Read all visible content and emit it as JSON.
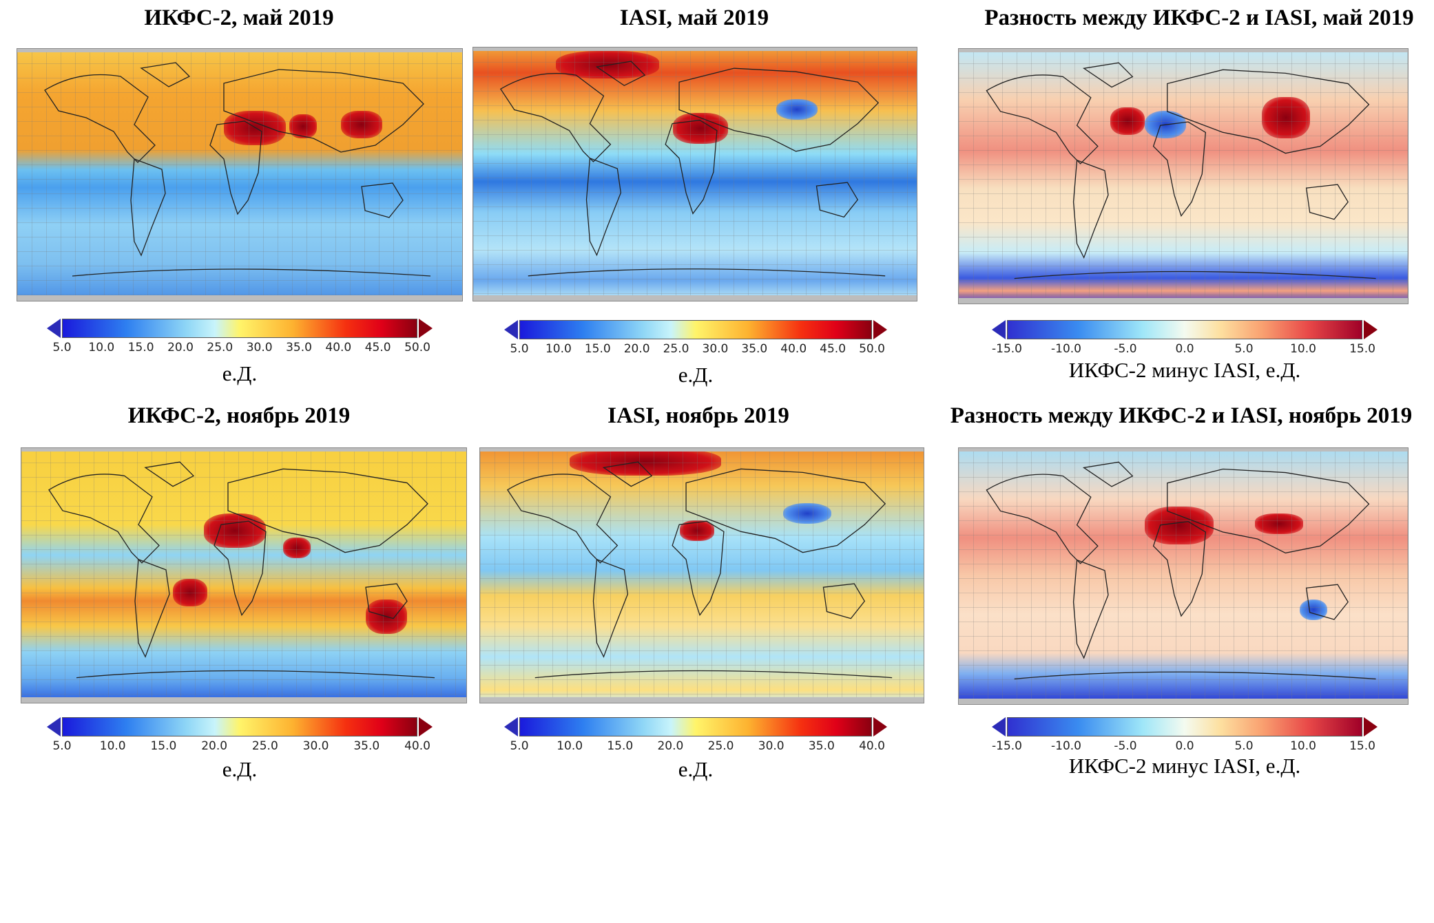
{
  "panels": [
    {
      "title": "ИКФС-2, май 2019",
      "unit": "е.Д.",
      "cbar": "abs",
      "ticks": [
        "5.0",
        "10.0",
        "15.0",
        "20.0",
        "25.0",
        "30.0",
        "35.0",
        "40.0",
        "45.0",
        "50.0"
      ]
    },
    {
      "title": "IASI, май 2019",
      "unit": "е.Д.",
      "cbar": "abs",
      "ticks": [
        "5.0",
        "10.0",
        "15.0",
        "20.0",
        "25.0",
        "30.0",
        "35.0",
        "40.0",
        "45.0",
        "50.0"
      ]
    },
    {
      "title": "Разность между ИКФС-2 и IASI, май 2019",
      "unit": "ИКФС-2 минус IASI, е.Д.",
      "cbar": "diff",
      "ticks": [
        "-15.0",
        "-10.0",
        "-5.0",
        "0.0",
        "5.0",
        "10.0",
        "15.0"
      ]
    },
    {
      "title": "ИКФС-2, ноябрь 2019",
      "unit": "е.Д.",
      "cbar": "abs",
      "ticks": [
        "5.0",
        "10.0",
        "15.0",
        "20.0",
        "25.0",
        "30.0",
        "35.0",
        "40.0"
      ]
    },
    {
      "title": "IASI, ноябрь 2019",
      "unit": "е.Д.",
      "cbar": "abs",
      "ticks": [
        "5.0",
        "10.0",
        "15.0",
        "20.0",
        "25.0",
        "30.0",
        "35.0",
        "40.0"
      ]
    },
    {
      "title": "Разность между ИКФС-2 и IASI, ноябрь 2019",
      "unit": "ИКФС-2 минус IASI, е.Д.",
      "cbar": "diff",
      "ticks": [
        "-15.0",
        "-10.0",
        "-5.0",
        "0.0",
        "5.0",
        "10.0",
        "15.0"
      ]
    }
  ],
  "chart_data": [
    {
      "type": "heatmap",
      "title": "ИКФС-2, май 2019",
      "colorbar_label": "е.Д.",
      "range": [
        5,
        50
      ]
    },
    {
      "type": "heatmap",
      "title": "IASI, май 2019",
      "colorbar_label": "е.Д.",
      "range": [
        5,
        50
      ]
    },
    {
      "type": "heatmap",
      "title": "Разность между ИКФС-2 и IASI, май 2019",
      "colorbar_label": "ИКФС-2 минус IASI, е.Д.",
      "range": [
        -15,
        15
      ]
    },
    {
      "type": "heatmap",
      "title": "ИКФС-2, ноябрь 2019",
      "colorbar_label": "е.Д.",
      "range": [
        5,
        40
      ]
    },
    {
      "type": "heatmap",
      "title": "IASI, ноябрь 2019",
      "colorbar_label": "е.Д.",
      "range": [
        5,
        40
      ]
    },
    {
      "type": "heatmap",
      "title": "Разность между ИКФС-2 и IASI, ноябрь 2019",
      "colorbar_label": "ИКФС-2 минус IASI, е.Д.",
      "range": [
        -15,
        15
      ]
    }
  ]
}
